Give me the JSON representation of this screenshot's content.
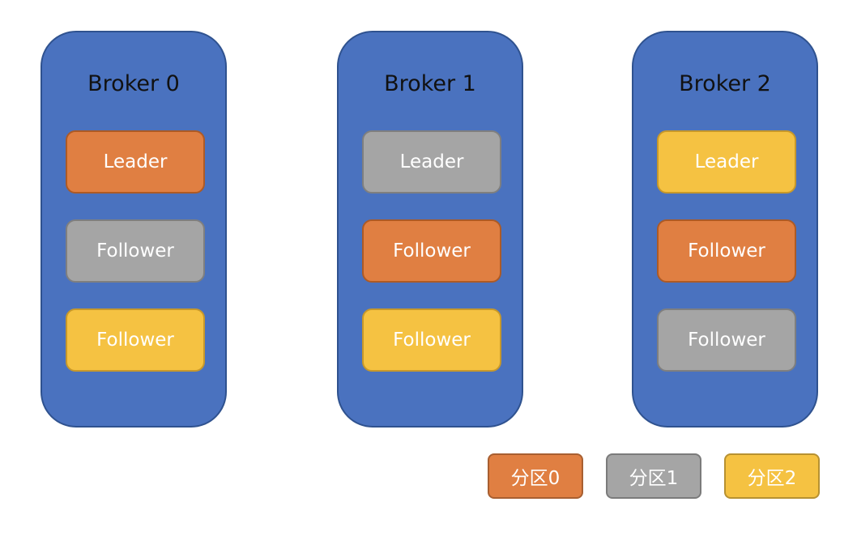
{
  "brokers": [
    {
      "title": "Broker 0",
      "replicas": [
        {
          "label": "Leader",
          "partition": 0
        },
        {
          "label": "Follower",
          "partition": 1
        },
        {
          "label": "Follower",
          "partition": 2
        }
      ]
    },
    {
      "title": "Broker 1",
      "replicas": [
        {
          "label": "Leader",
          "partition": 1
        },
        {
          "label": "Follower",
          "partition": 0
        },
        {
          "label": "Follower",
          "partition": 2
        }
      ]
    },
    {
      "title": "Broker 2",
      "replicas": [
        {
          "label": "Leader",
          "partition": 2
        },
        {
          "label": "Follower",
          "partition": 0
        },
        {
          "label": "Follower",
          "partition": 1
        }
      ]
    }
  ],
  "legend": [
    {
      "label": "分区0",
      "color": "#e07f42"
    },
    {
      "label": "分区1",
      "color": "#a5a5a5"
    },
    {
      "label": "分区2",
      "color": "#f5c242"
    }
  ],
  "colors": {
    "broker_fill": "#4a72bf",
    "broker_border": "#2f528f"
  }
}
